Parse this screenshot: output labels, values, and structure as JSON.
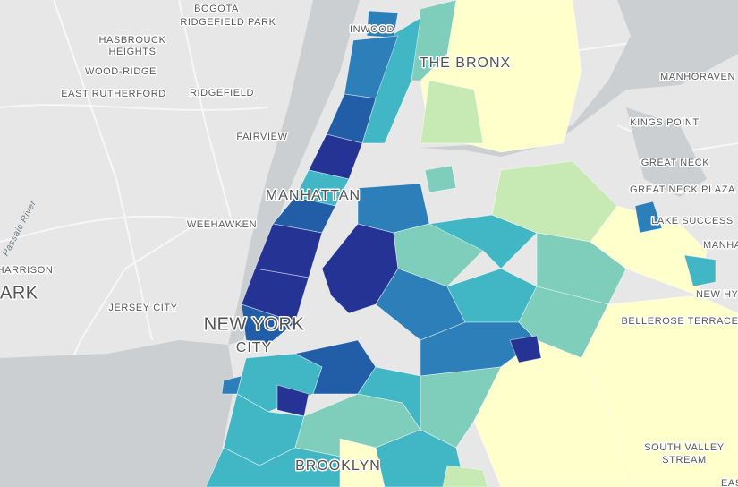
{
  "labels": [
    "BOGOTA",
    [
      "HASBROUCK",
      "HEIGHTS"
    ],
    "RIDGEFIELD PARK",
    "WOOD-RIDGE",
    "EAST RUTHERFORD",
    "RIDGEFIELD",
    "FAIRVIEW",
    "INWOOD",
    "THE BRONX",
    "MANHORAVEN",
    "KINGS POINT",
    "GREAT NECK",
    "GREAT NECK PLAZA",
    "MANHATTAN",
    "WEEHAWKEN",
    "LAKE SUCCESS",
    "MANHA",
    "Passaic River",
    "HARRISON",
    "ARK",
    "JERSEY CITY",
    [
      "NEW YORK",
      "CITY"
    ],
    "NEW HY",
    "BELLEROSE TERRACE",
    [
      "SOUTH VALLEY",
      "STREAM"
    ],
    "BROOKLYN",
    "EAS"
  ]
}
